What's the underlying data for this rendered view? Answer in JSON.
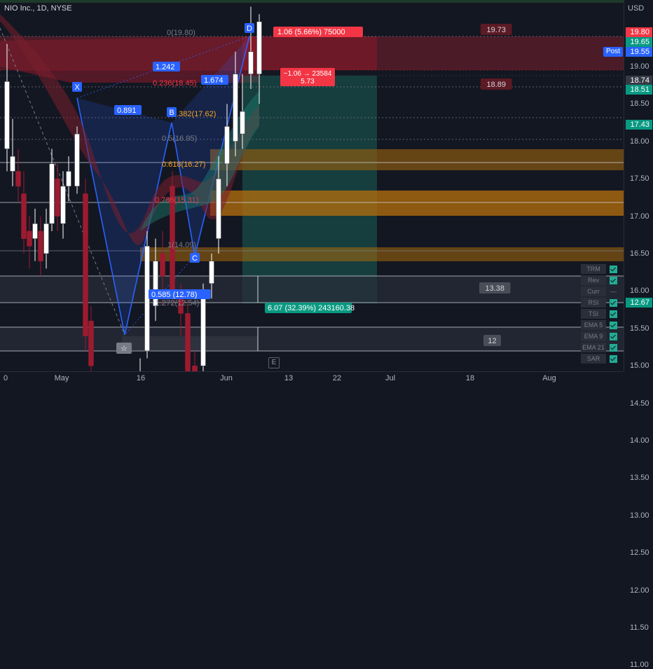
{
  "header": {
    "symbol": "NIO Inc., 1D, NYSE",
    "currency": "USD"
  },
  "price_axis": {
    "labels": [
      "19.00",
      "18.50",
      "18.00",
      "17.50",
      "17.00",
      "16.50",
      "16.00",
      "15.50",
      "15.00",
      "14.50",
      "14.00",
      "13.50",
      "13.00",
      "12.50",
      "12.00",
      "11.50",
      "11.00"
    ],
    "flags": [
      {
        "text": "19.80",
        "color": "#f23645"
      },
      {
        "text": "19.65",
        "color": "#089981"
      },
      {
        "text": "19.55",
        "color": "#2962ff"
      },
      {
        "text": "18.74",
        "color": "#363a45"
      },
      {
        "text": "18.51",
        "color": "#089981"
      },
      {
        "text": "17.43",
        "color": "#089981"
      },
      {
        "text": "12.67",
        "color": "#089981"
      }
    ],
    "post_label": "Post"
  },
  "time_axis": [
    "0",
    "May",
    "16",
    "Jun",
    "13",
    "22",
    "Jul",
    "18",
    "Aug"
  ],
  "pattern": {
    "points": [
      "X",
      "B",
      "C",
      "D"
    ],
    "ratios": [
      "0.891",
      "1.242",
      "1.674",
      "0.585 (12.78)"
    ],
    "fib_levels": [
      "0(19.80)",
      "0.236(18.45)",
      "0.382(17.62)",
      "0.5(16.95)",
      "0.618(16.27)",
      "0.786(15.31)",
      "1(14.09)",
      "1.272(12.54)"
    ]
  },
  "position": {
    "target_label": "1.06 (5.66%) 75000",
    "stop_label_line1": "−1.06 → 23584",
    "stop_label_line2": "5.73",
    "profit_label": "6.07 (32.39%) 243160.38"
  },
  "price_tags": [
    "19.73",
    "18.89",
    "13.38",
    "12"
  ],
  "indicators": [
    {
      "name": "TRM",
      "checked": true
    },
    {
      "name": "Rev",
      "checked": true
    },
    {
      "name": "Curr",
      "checked": false
    },
    {
      "name": "RSI",
      "checked": true
    },
    {
      "name": "TSI",
      "checked": true
    },
    {
      "name": "EMA 5",
      "checked": true
    },
    {
      "name": "EMA 9",
      "checked": true
    },
    {
      "name": "EMA 21",
      "checked": true
    },
    {
      "name": "SAR",
      "checked": true
    }
  ],
  "events_marker": "E",
  "colors": {
    "bull": "#ffffff",
    "bear": "#8b1a2b",
    "pattern": "#2962ff",
    "loss_zone": "#b2182b",
    "profit_zone": "#1b5e56",
    "orange_zone": "#b8860b"
  }
}
